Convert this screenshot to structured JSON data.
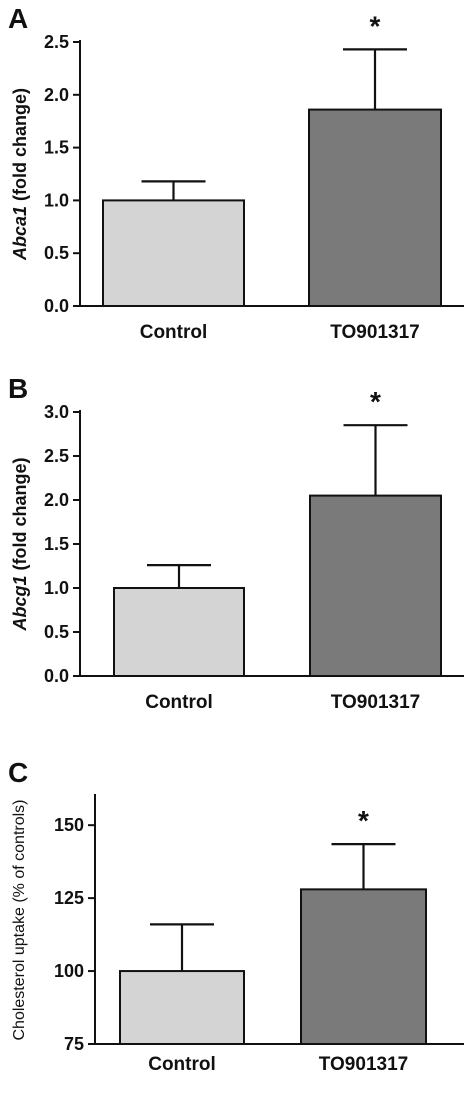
{
  "chart_data": [
    {
      "type": "bar",
      "panel": "A",
      "categories": [
        "Control",
        "TO901317"
      ],
      "values": [
        1.0,
        1.86
      ],
      "errors": [
        0.18,
        0.57
      ],
      "significance": [
        "",
        "*"
      ],
      "ylabel_gene": "Abca1",
      "ylabel_rest": " (fold change)",
      "ylim": [
        0,
        2.5
      ],
      "yticks": [
        "0.0",
        "0.5",
        "1.0",
        "1.5",
        "2.0",
        "2.5"
      ],
      "colors": [
        "#d4d4d4",
        "#7a7a7a"
      ]
    },
    {
      "type": "bar",
      "panel": "B",
      "categories": [
        "Control",
        "TO901317"
      ],
      "values": [
        1.0,
        2.05
      ],
      "errors": [
        0.26,
        0.8
      ],
      "significance": [
        "",
        "*"
      ],
      "ylabel_gene": "Abcg1",
      "ylabel_rest": " (fold change)",
      "ylim": [
        0,
        3.0
      ],
      "yticks": [
        "0.0",
        "0.5",
        "1.0",
        "1.5",
        "2.0",
        "2.5",
        "3.0"
      ],
      "colors": [
        "#d4d4d4",
        "#7a7a7a"
      ]
    },
    {
      "type": "bar",
      "panel": "C",
      "categories": [
        "Control",
        "TO901317"
      ],
      "values": [
        100,
        128
      ],
      "errors": [
        16,
        15.5
      ],
      "significance": [
        "",
        "*"
      ],
      "ylabel_gene": "",
      "ylabel_rest": "Cholesterol uptake (% of controls)",
      "ylim": [
        75,
        160
      ],
      "yticks": [
        "75",
        "100",
        "125",
        "150"
      ],
      "colors": [
        "#d4d4d4",
        "#7a7a7a"
      ]
    }
  ]
}
